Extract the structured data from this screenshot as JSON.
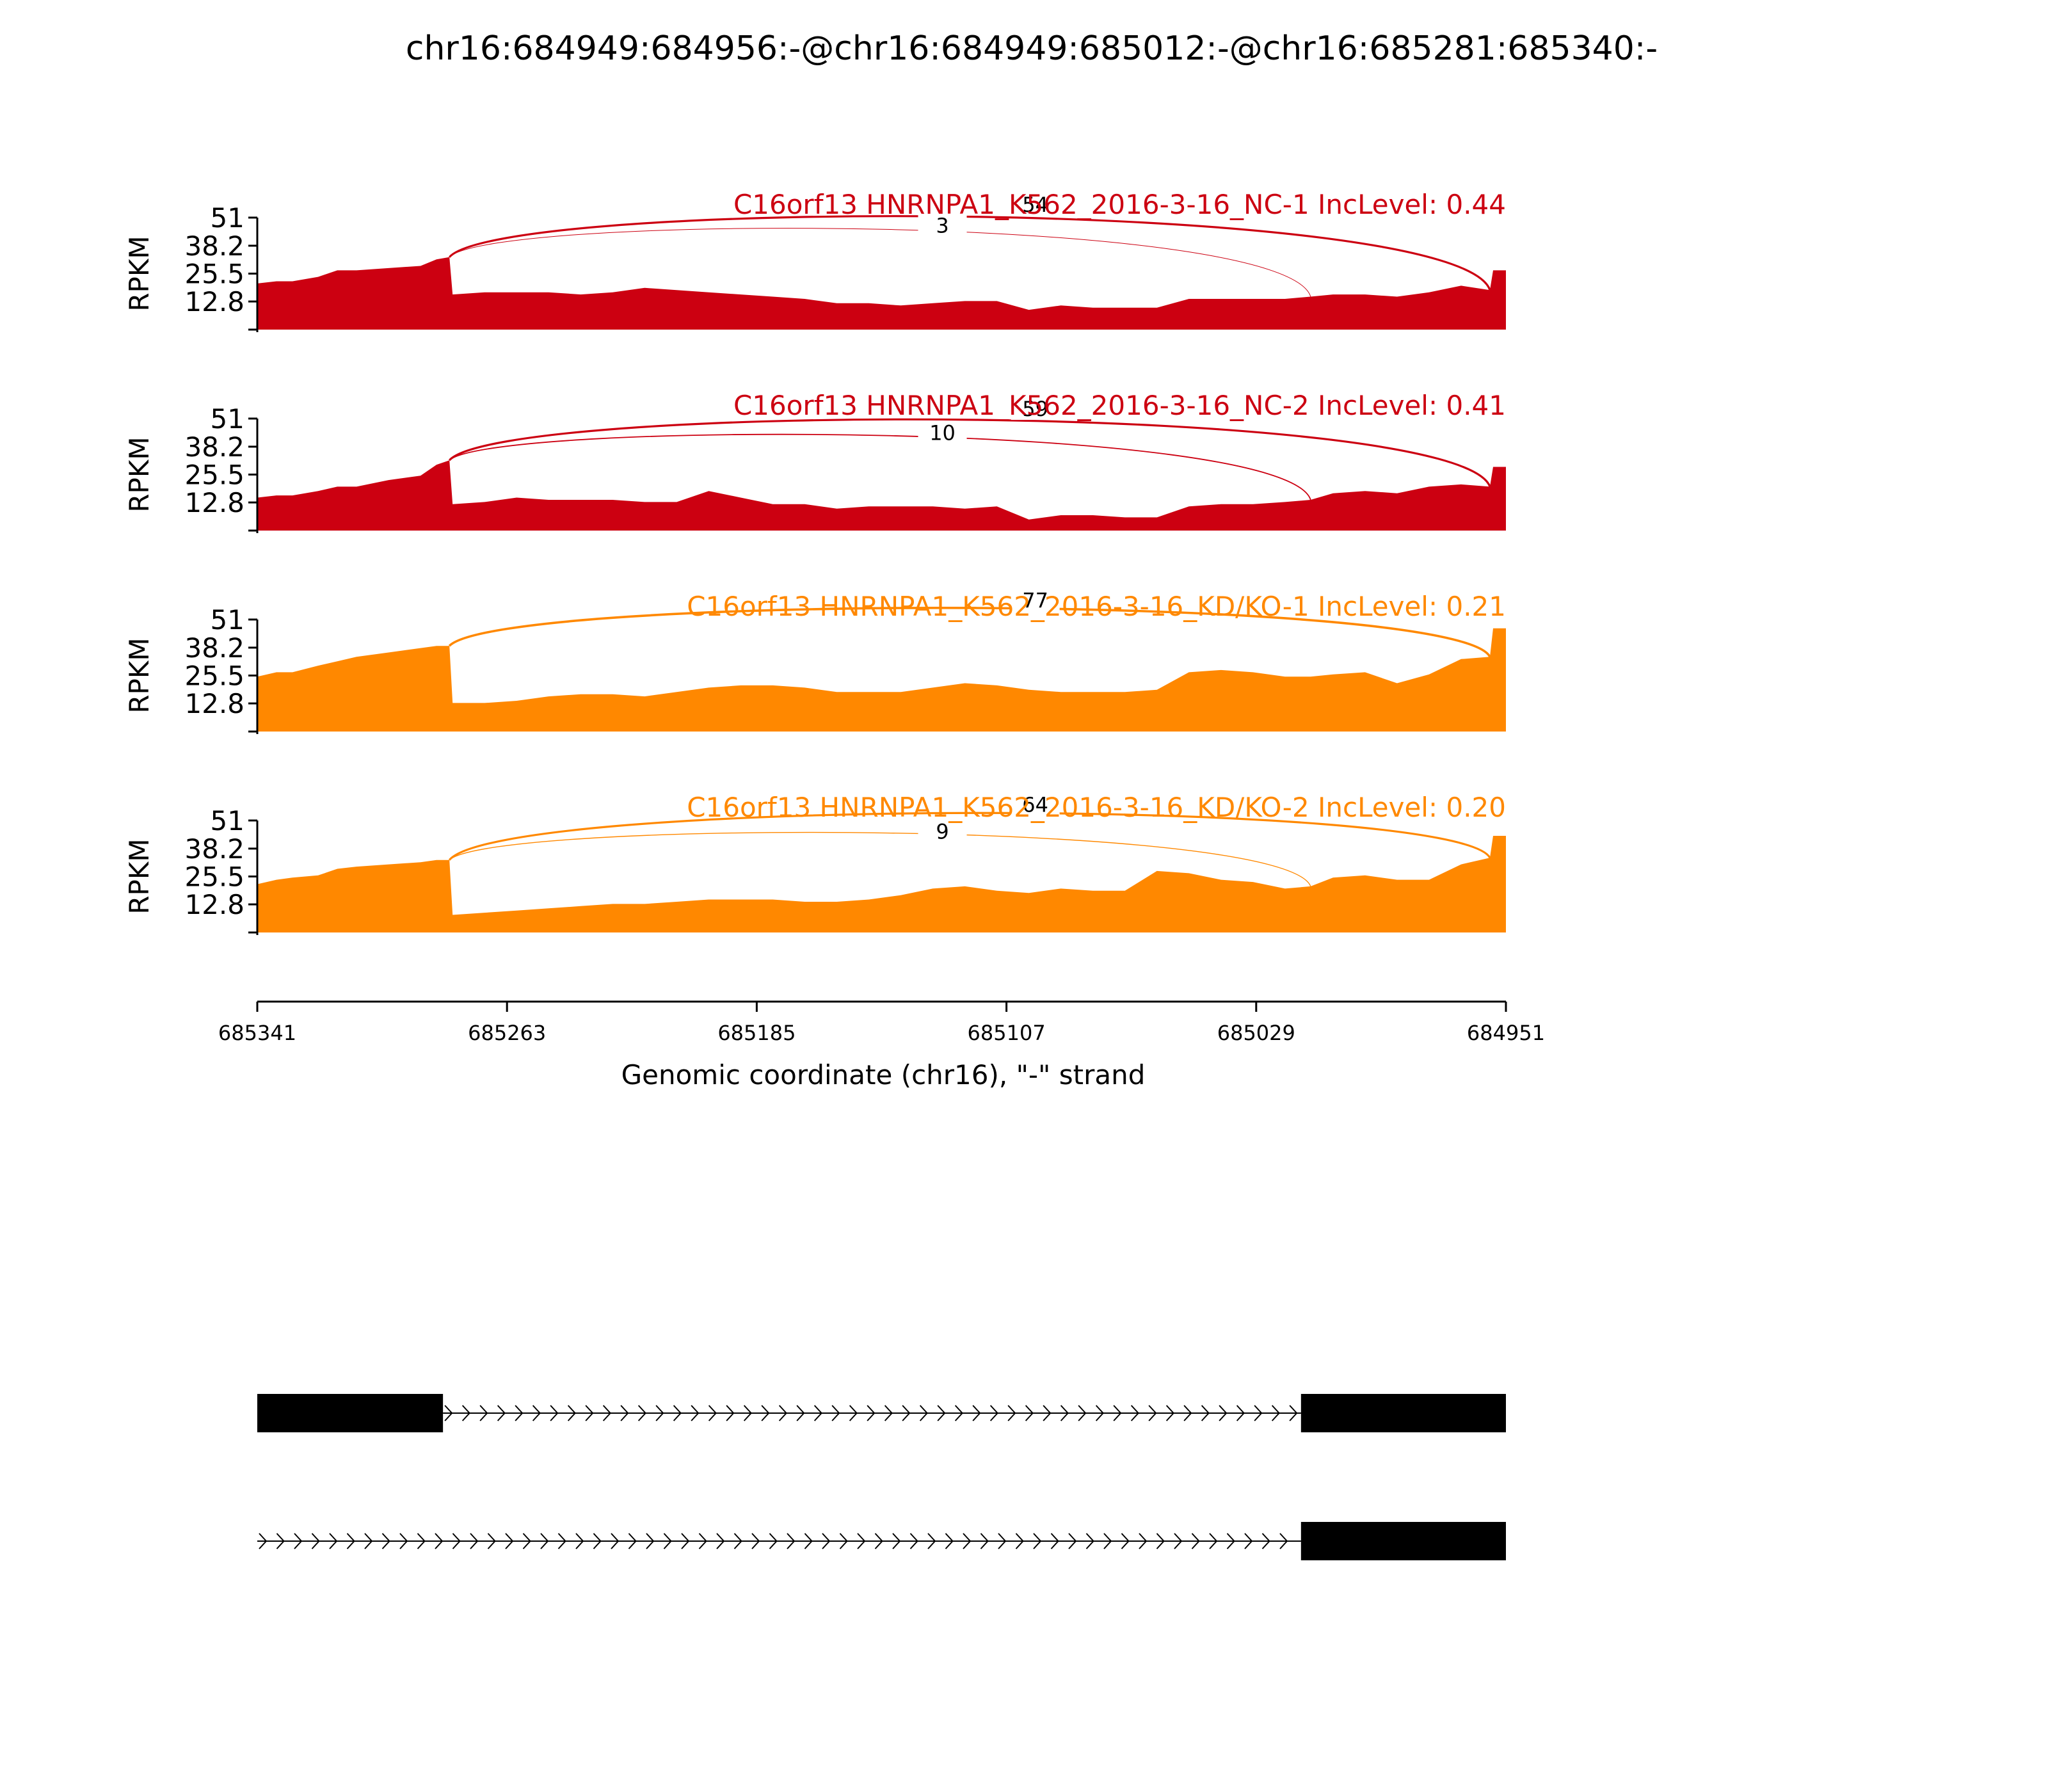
{
  "title": "chr16:684949:684956:-@chr16:684949:685012:-@chr16:685281:685340:-",
  "chart_data": {
    "type": "area",
    "x_range": [
      685341,
      684951
    ],
    "x_ticks": [
      685341,
      685263,
      685185,
      685107,
      685029,
      684951
    ],
    "xlabel": "Genomic coordinate (chr16), \"-\" strand",
    "ylabel": "RPKM",
    "ylim": [
      0,
      51
    ],
    "y_ticks": [
      "51",
      "38.2",
      "25.5",
      "12.8"
    ],
    "colors": {
      "NC": "#cc0011",
      "KD": "#ff8800"
    },
    "tracks": [
      {
        "label": "C16orf13 HNRNPA1_K562_2016-3-16_NC-1 IncLevel: 0.44",
        "group": "NC",
        "coverage": [
          [
            685341,
            21
          ],
          [
            685335,
            22
          ],
          [
            685330,
            22
          ],
          [
            685322,
            24
          ],
          [
            685316,
            27
          ],
          [
            685310,
            27
          ],
          [
            685300,
            28
          ],
          [
            685290,
            29
          ],
          [
            685285,
            32
          ],
          [
            685281,
            33
          ],
          [
            685280,
            16
          ],
          [
            685270,
            17
          ],
          [
            685260,
            17
          ],
          [
            685250,
            17
          ],
          [
            685240,
            16
          ],
          [
            685230,
            17
          ],
          [
            685220,
            19
          ],
          [
            685210,
            18
          ],
          [
            685200,
            17
          ],
          [
            685190,
            16
          ],
          [
            685180,
            15
          ],
          [
            685170,
            14
          ],
          [
            685160,
            12
          ],
          [
            685150,
            12
          ],
          [
            685140,
            11
          ],
          [
            685130,
            12
          ],
          [
            685120,
            13
          ],
          [
            685110,
            13
          ],
          [
            685100,
            9
          ],
          [
            685090,
            11
          ],
          [
            685080,
            10
          ],
          [
            685070,
            10
          ],
          [
            685060,
            10
          ],
          [
            685050,
            14
          ],
          [
            685040,
            14
          ],
          [
            685030,
            14
          ],
          [
            685020,
            14
          ],
          [
            685012,
            15
          ],
          [
            685005,
            16
          ],
          [
            684995,
            16
          ],
          [
            684985,
            15
          ],
          [
            684975,
            17
          ],
          [
            684965,
            20
          ],
          [
            684956,
            18
          ],
          [
            684955,
            27
          ],
          [
            684951,
            27
          ]
        ],
        "junctions": [
          {
            "start": 685281,
            "end": 684956,
            "count": "54",
            "label_x": 685098,
            "level": 0.84,
            "width": 3.2
          },
          {
            "start": 685281,
            "end": 685012,
            "count": "3",
            "label_x": 685127,
            "level": 0.74,
            "width": 1.0
          }
        ]
      },
      {
        "label": "C16orf13 HNRNPA1_K562_2016-3-16_NC-2 IncLevel: 0.41",
        "group": "NC",
        "coverage": [
          [
            685341,
            15
          ],
          [
            685335,
            16
          ],
          [
            685330,
            16
          ],
          [
            685322,
            18
          ],
          [
            685316,
            20
          ],
          [
            685310,
            20
          ],
          [
            685300,
            23
          ],
          [
            685290,
            25
          ],
          [
            685285,
            30
          ],
          [
            685281,
            32
          ],
          [
            685280,
            12
          ],
          [
            685270,
            13
          ],
          [
            685260,
            15
          ],
          [
            685250,
            14
          ],
          [
            685240,
            14
          ],
          [
            685230,
            14
          ],
          [
            685220,
            13
          ],
          [
            685210,
            13
          ],
          [
            685200,
            18
          ],
          [
            685190,
            15
          ],
          [
            685180,
            12
          ],
          [
            685170,
            12
          ],
          [
            685160,
            10
          ],
          [
            685150,
            11
          ],
          [
            685140,
            11
          ],
          [
            685130,
            11
          ],
          [
            685120,
            10
          ],
          [
            685110,
            11
          ],
          [
            685100,
            5
          ],
          [
            685090,
            7
          ],
          [
            685080,
            7
          ],
          [
            685070,
            6
          ],
          [
            685060,
            6
          ],
          [
            685050,
            11
          ],
          [
            685040,
            12
          ],
          [
            685030,
            12
          ],
          [
            685020,
            13
          ],
          [
            685012,
            14
          ],
          [
            685005,
            17
          ],
          [
            684995,
            18
          ],
          [
            684985,
            17
          ],
          [
            684975,
            20
          ],
          [
            684965,
            21
          ],
          [
            684956,
            20
          ],
          [
            684955,
            29
          ],
          [
            684951,
            29
          ]
        ],
        "junctions": [
          {
            "start": 685281,
            "end": 684956,
            "count": "59",
            "label_x": 685098,
            "level": 0.82,
            "width": 3.2
          },
          {
            "start": 685281,
            "end": 685012,
            "count": "10",
            "label_x": 685127,
            "level": 0.7,
            "width": 1.8
          }
        ]
      },
      {
        "label": "C16orf13 HNRNPA1_K562_2016-3-16_KD/KO-1 IncLevel: 0.21",
        "group": "KD",
        "coverage": [
          [
            685341,
            25
          ],
          [
            685335,
            27
          ],
          [
            685330,
            27
          ],
          [
            685322,
            30
          ],
          [
            685316,
            32
          ],
          [
            685310,
            34
          ],
          [
            685300,
            36
          ],
          [
            685290,
            38
          ],
          [
            685285,
            39
          ],
          [
            685281,
            39
          ],
          [
            685280,
            13
          ],
          [
            685270,
            13
          ],
          [
            685260,
            14
          ],
          [
            685250,
            16
          ],
          [
            685240,
            17
          ],
          [
            685230,
            17
          ],
          [
            685220,
            16
          ],
          [
            685210,
            18
          ],
          [
            685200,
            20
          ],
          [
            685190,
            21
          ],
          [
            685180,
            21
          ],
          [
            685170,
            20
          ],
          [
            685160,
            18
          ],
          [
            685150,
            18
          ],
          [
            685140,
            18
          ],
          [
            685130,
            20
          ],
          [
            685120,
            22
          ],
          [
            685110,
            21
          ],
          [
            685100,
            19
          ],
          [
            685090,
            18
          ],
          [
            685080,
            18
          ],
          [
            685070,
            18
          ],
          [
            685060,
            19
          ],
          [
            685050,
            27
          ],
          [
            685040,
            28
          ],
          [
            685030,
            27
          ],
          [
            685020,
            25
          ],
          [
            685012,
            25
          ],
          [
            685005,
            26
          ],
          [
            684995,
            27
          ],
          [
            684985,
            22
          ],
          [
            684975,
            26
          ],
          [
            684965,
            33
          ],
          [
            684956,
            34
          ],
          [
            684955,
            47
          ],
          [
            684951,
            47
          ]
        ],
        "junctions": [
          {
            "start": 685281,
            "end": 684956,
            "count": "77",
            "label_x": 685098,
            "level": 0.88,
            "width": 3.6
          }
        ]
      },
      {
        "label": "C16orf13 HNRNPA1_K562_2016-3-16_KD/KO-2 IncLevel: 0.20",
        "group": "KD",
        "coverage": [
          [
            685341,
            22
          ],
          [
            685335,
            24
          ],
          [
            685330,
            25
          ],
          [
            685322,
            26
          ],
          [
            685316,
            29
          ],
          [
            685310,
            30
          ],
          [
            685300,
            31
          ],
          [
            685290,
            32
          ],
          [
            685285,
            33
          ],
          [
            685281,
            33
          ],
          [
            685280,
            8
          ],
          [
            685270,
            9
          ],
          [
            685260,
            10
          ],
          [
            685250,
            11
          ],
          [
            685240,
            12
          ],
          [
            685230,
            13
          ],
          [
            685220,
            13
          ],
          [
            685210,
            14
          ],
          [
            685200,
            15
          ],
          [
            685190,
            15
          ],
          [
            685180,
            15
          ],
          [
            685170,
            14
          ],
          [
            685160,
            14
          ],
          [
            685150,
            15
          ],
          [
            685140,
            17
          ],
          [
            685130,
            20
          ],
          [
            685120,
            21
          ],
          [
            685110,
            19
          ],
          [
            685100,
            18
          ],
          [
            685090,
            20
          ],
          [
            685080,
            19
          ],
          [
            685070,
            19
          ],
          [
            685060,
            28
          ],
          [
            685050,
            27
          ],
          [
            685040,
            24
          ],
          [
            685030,
            23
          ],
          [
            685020,
            20
          ],
          [
            685012,
            21
          ],
          [
            685005,
            25
          ],
          [
            684995,
            26
          ],
          [
            684985,
            24
          ],
          [
            684975,
            24
          ],
          [
            684965,
            31
          ],
          [
            684956,
            34
          ],
          [
            684955,
            44
          ],
          [
            684951,
            44
          ]
        ],
        "junctions": [
          {
            "start": 685281,
            "end": 684956,
            "count": "64",
            "label_x": 685098,
            "level": 0.86,
            "width": 3.2
          },
          {
            "start": 685281,
            "end": 685012,
            "count": "9",
            "label_x": 685127,
            "level": 0.72,
            "width": 1.4
          }
        ]
      }
    ],
    "isoforms": [
      {
        "exons": [
          [
            685341,
            685283
          ],
          [
            685015,
            684951
          ]
        ]
      },
      {
        "exons": [
          [
            685015,
            684951
          ]
        ],
        "intron_start": 685341
      }
    ]
  }
}
